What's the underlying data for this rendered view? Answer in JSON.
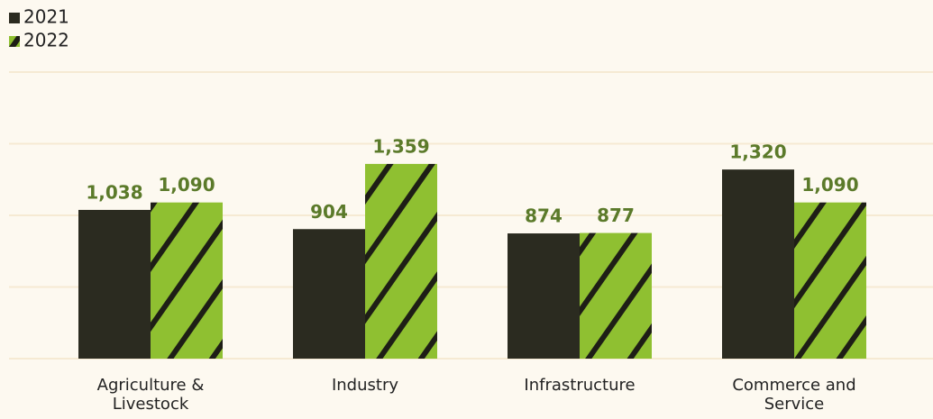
{
  "chart_data": {
    "type": "bar",
    "categories": [
      "Agriculture & Livestock",
      "Industry",
      "Infrastructure",
      "Commerce and Service"
    ],
    "series": [
      {
        "name": "2021",
        "color": "#2b2b20",
        "values": [
          1038,
          904,
          874,
          1320
        ],
        "value_labels": [
          "1,038",
          "904",
          "874",
          "1,320"
        ]
      },
      {
        "name": "2022",
        "color": "#8fc031",
        "hatch": true,
        "values": [
          1090,
          1359,
          877,
          1090
        ],
        "value_labels": [
          "1,090",
          "1,359",
          "877",
          "1,090"
        ]
      }
    ],
    "ylim": [
      0,
      2000
    ],
    "yticks": [
      0,
      500,
      1000,
      1500,
      2000
    ],
    "grid": true,
    "legend": "top-left"
  }
}
